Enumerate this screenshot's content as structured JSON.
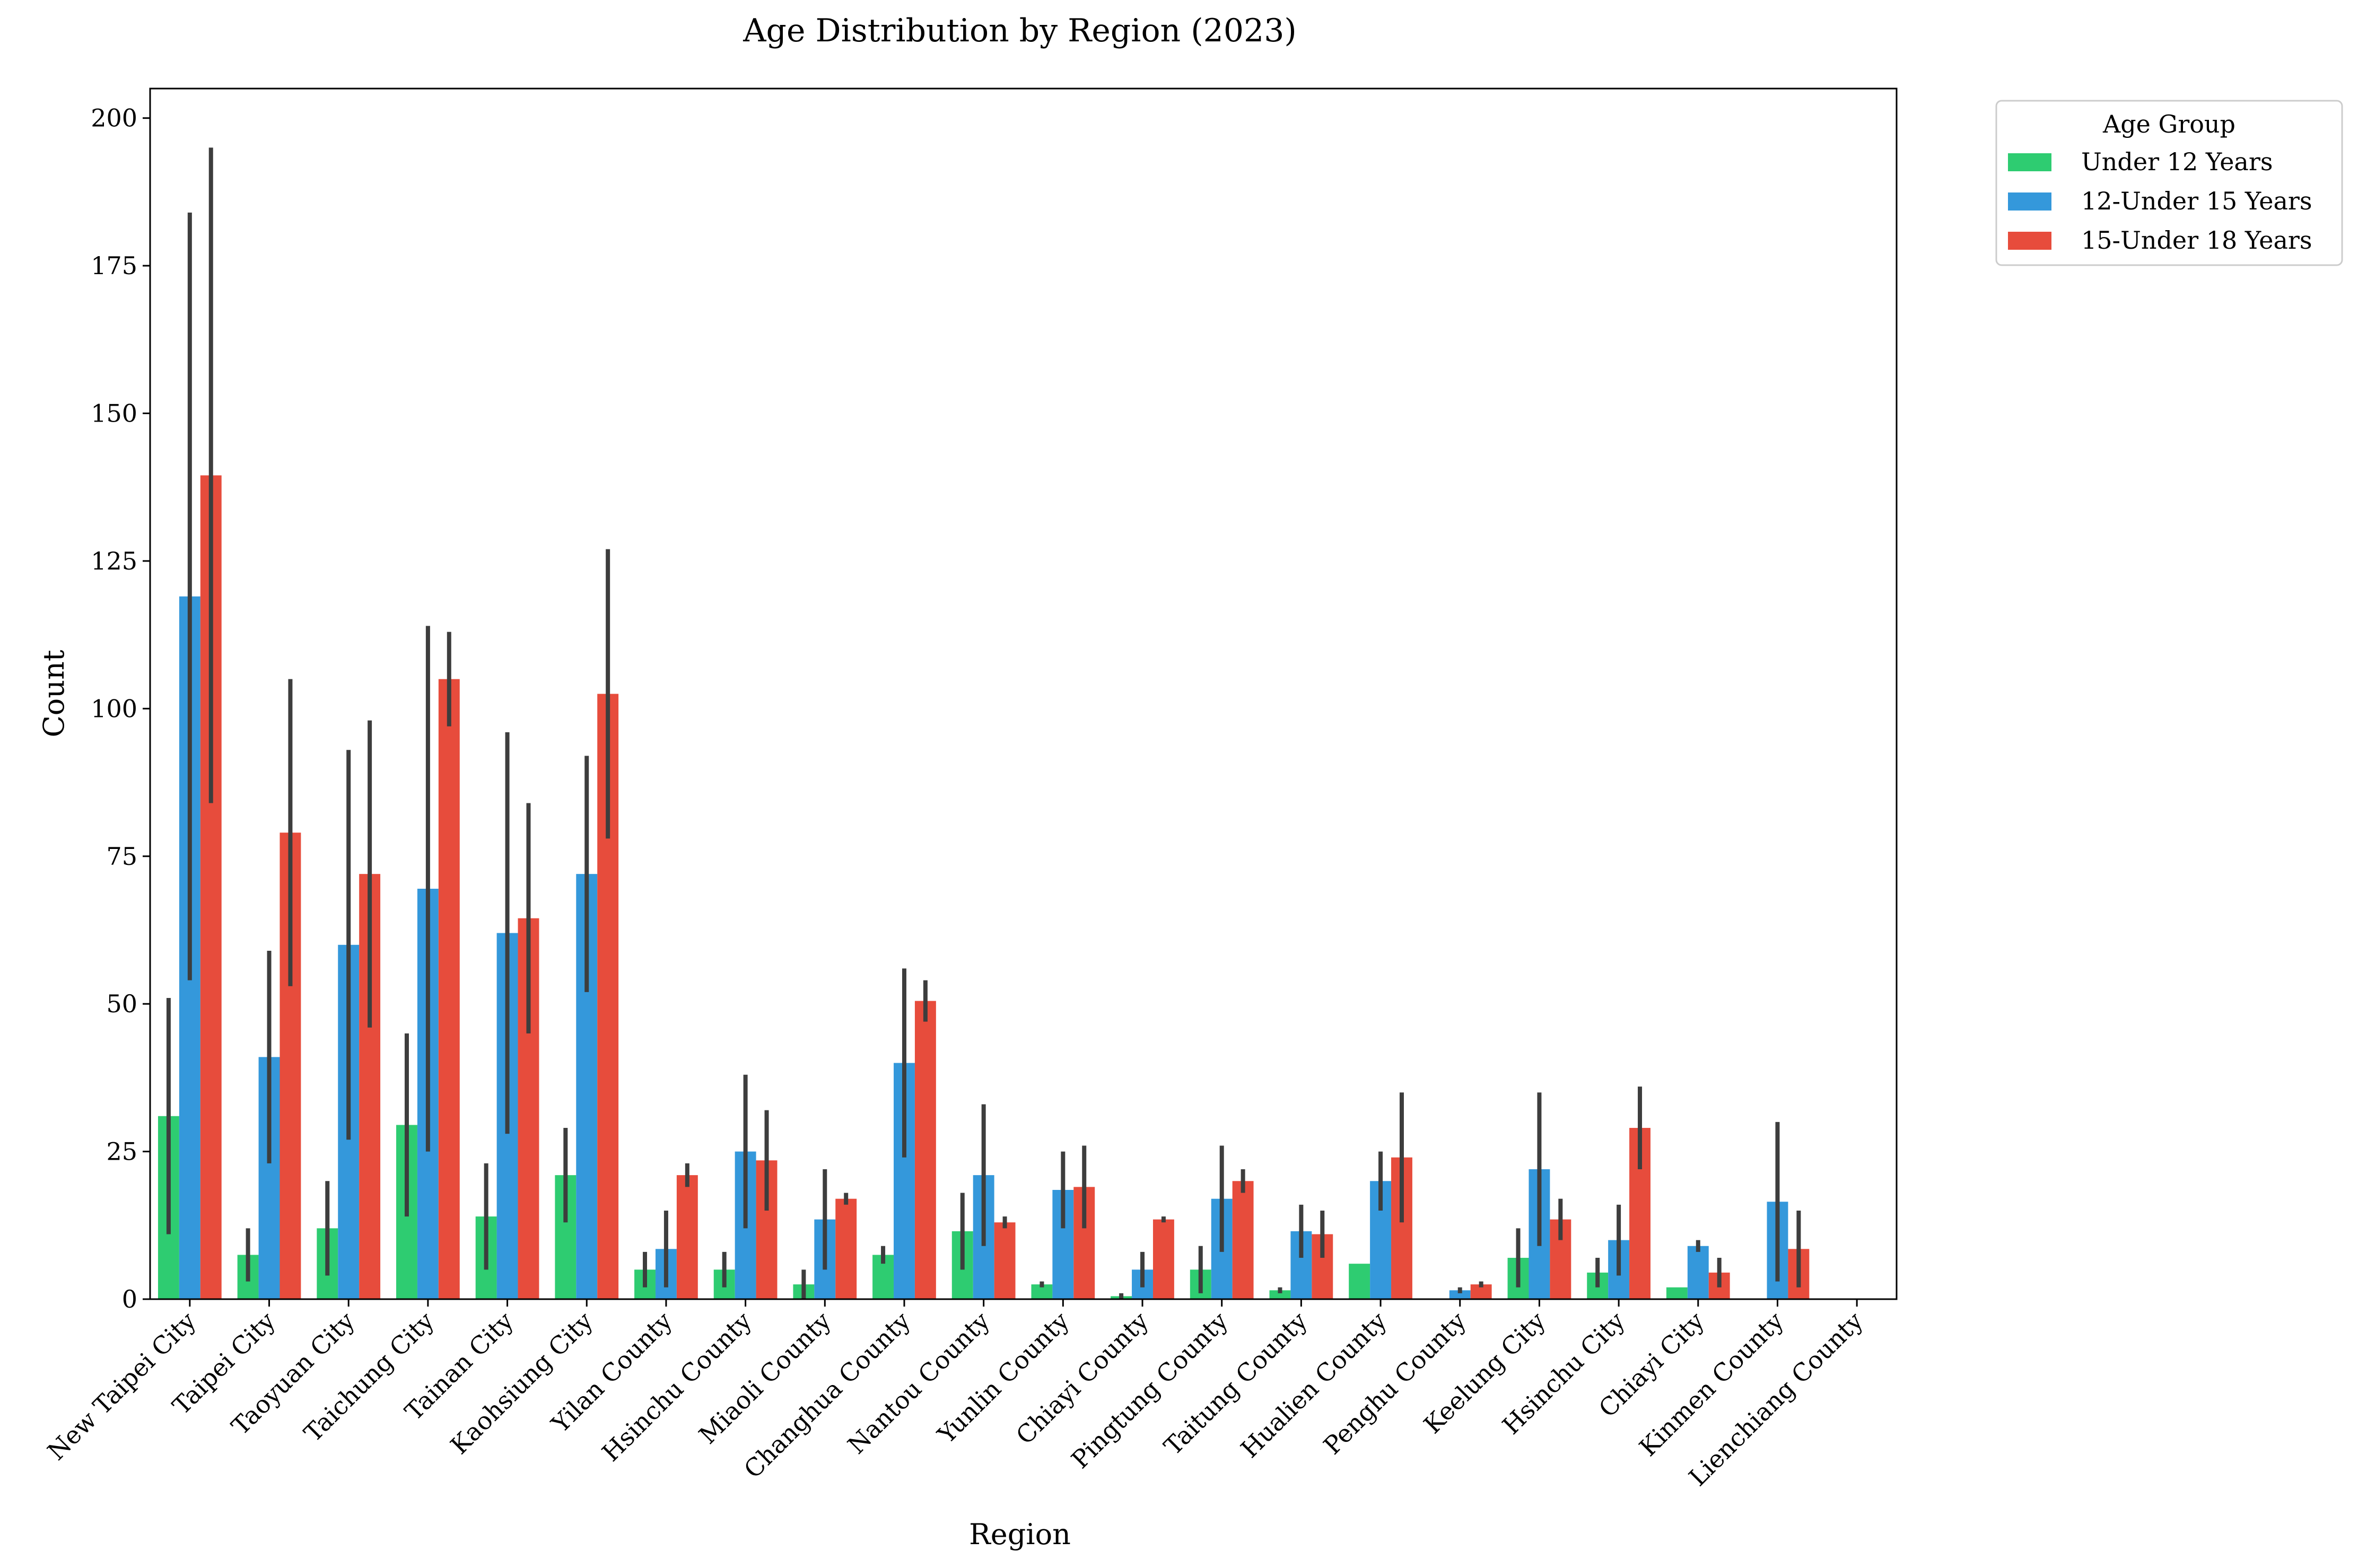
{
  "chart_data": {
    "type": "bar",
    "title": "Age Distribution by Region (2023)",
    "xlabel": "Region",
    "ylabel": "Count",
    "ylim": [
      0,
      205
    ],
    "yticks": [
      0,
      25,
      50,
      75,
      100,
      125,
      150,
      175,
      200
    ],
    "grid": false,
    "legend": {
      "title": "Age Group",
      "placement": "outside-top-right"
    },
    "categories": [
      "New Taipei City",
      "Taipei City",
      "Taoyuan City",
      "Taichung City",
      "Tainan City",
      "Kaohsiung City",
      "Yilan County",
      "Hsinchu County",
      "Miaoli County",
      "Changhua County",
      "Nantou County",
      "Yunlin County",
      "Chiayi County",
      "Pingtung County",
      "Taitung County",
      "Hualien County",
      "Penghu County",
      "Keelung City",
      "Hsinchu City",
      "Chiayi City",
      "Kinmen County",
      "Lienchiang County"
    ],
    "series": [
      {
        "name": "Under 12 Years",
        "color": "#2ecc71",
        "values": [
          31,
          7.5,
          12,
          29.5,
          14,
          21,
          5,
          5,
          2.5,
          7.5,
          11.5,
          2.5,
          0.5,
          5,
          1.5,
          6,
          0,
          7,
          4.5,
          2,
          0,
          0
        ],
        "err_low": [
          11,
          3,
          4,
          14,
          5,
          13,
          2,
          2,
          0,
          6,
          5,
          2,
          0,
          1,
          1,
          6,
          0,
          2,
          2,
          2,
          0,
          0
        ],
        "err_high": [
          51,
          12,
          20,
          45,
          23,
          29,
          8,
          8,
          5,
          9,
          18,
          3,
          1,
          9,
          2,
          6,
          0,
          12,
          7,
          2,
          0,
          0
        ]
      },
      {
        "name": "12-Under 15 Years",
        "color": "#3498db",
        "values": [
          119,
          41,
          60,
          69.5,
          62,
          72,
          8.5,
          25,
          13.5,
          40,
          21,
          18.5,
          5,
          17,
          11.5,
          20,
          1.5,
          22,
          10,
          9,
          16.5,
          0
        ],
        "err_low": [
          54,
          23,
          27,
          25,
          28,
          52,
          2,
          12,
          5,
          24,
          9,
          12,
          2,
          8,
          7,
          15,
          1,
          9,
          4,
          8,
          3,
          0
        ],
        "err_high": [
          184,
          59,
          93,
          114,
          96,
          92,
          15,
          38,
          22,
          56,
          33,
          25,
          8,
          26,
          16,
          25,
          2,
          35,
          16,
          10,
          30,
          0
        ]
      },
      {
        "name": "15-Under 18 Years",
        "color": "#e74c3c",
        "values": [
          139.5,
          79,
          72,
          105,
          64.5,
          102.5,
          21,
          23.5,
          17,
          50.5,
          13,
          19,
          13.5,
          20,
          11,
          24,
          2.5,
          13.5,
          29,
          4.5,
          8.5,
          0
        ],
        "err_low": [
          84,
          53,
          46,
          97,
          45,
          78,
          19,
          15,
          16,
          47,
          12,
          12,
          13,
          18,
          7,
          13,
          2,
          10,
          22,
          2,
          2,
          0
        ],
        "err_high": [
          195,
          105,
          98,
          113,
          84,
          127,
          23,
          32,
          18,
          54,
          14,
          26,
          14,
          22,
          15,
          35,
          3,
          17,
          36,
          7,
          15,
          0
        ]
      }
    ]
  }
}
